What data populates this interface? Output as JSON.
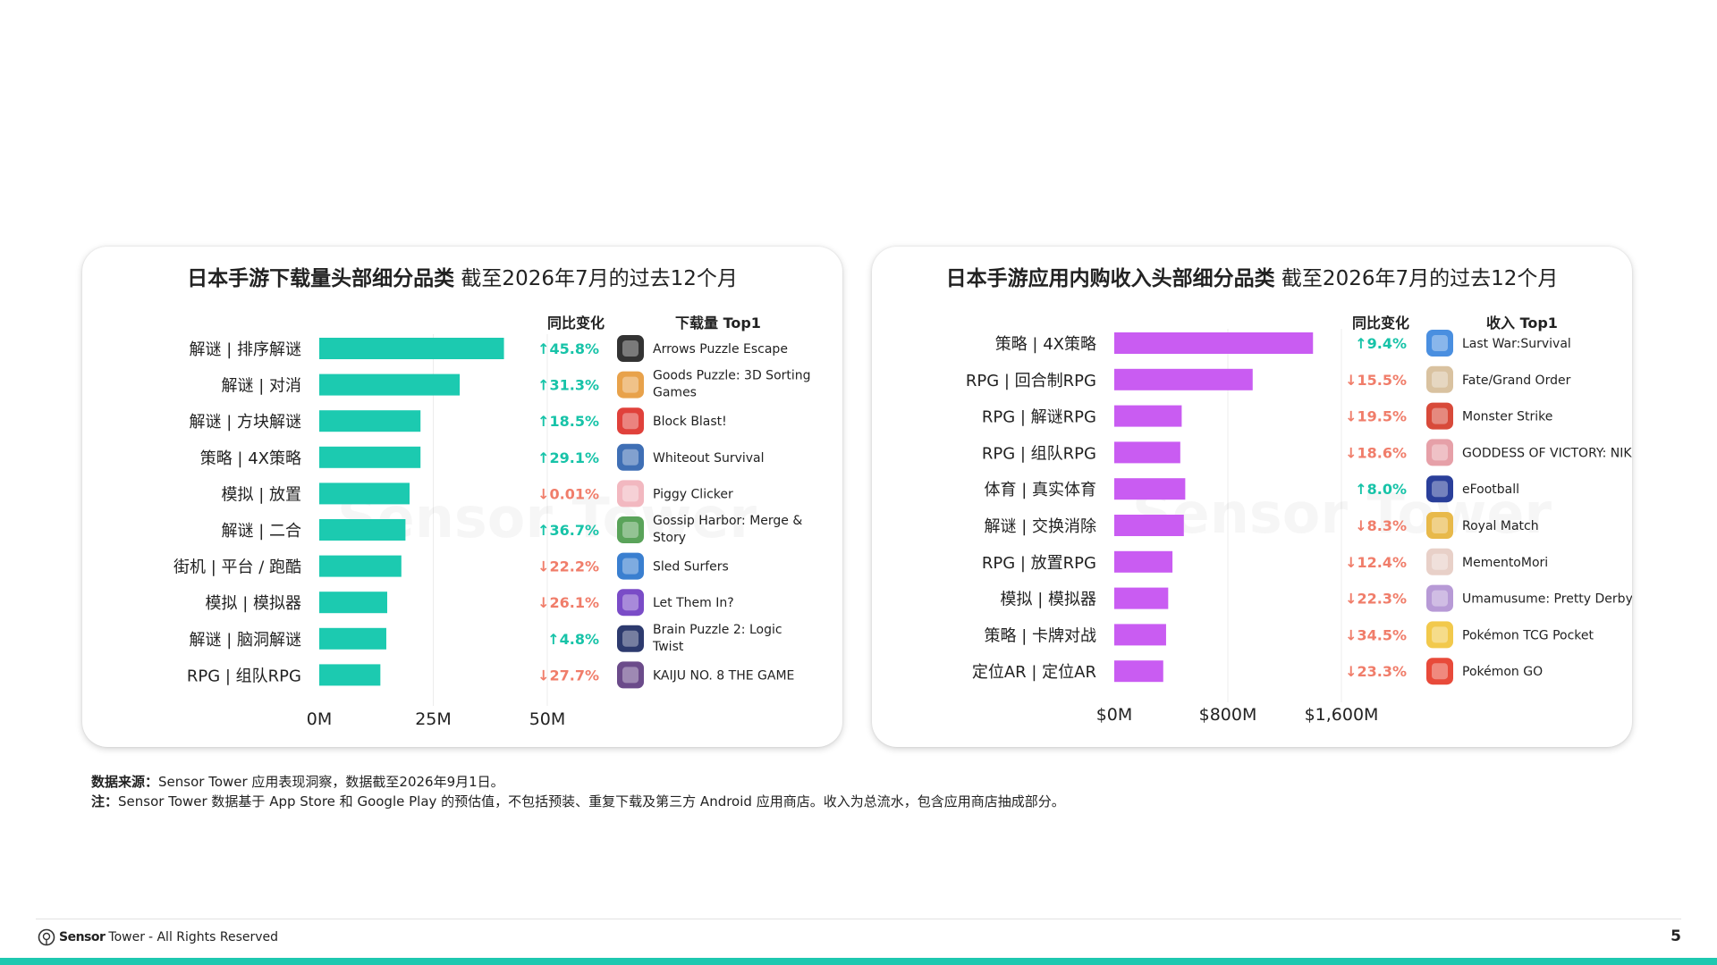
{
  "left": {
    "title_bold": "日本手游下载量头部细分品类",
    "title_rest": " 截至2026年7月的过去12个月",
    "col_change": "同比变化",
    "col_top": "下载量 Top1",
    "ticks": [
      "0M",
      "25M",
      "50M"
    ],
    "bar_color": "#1ccab0"
  },
  "right": {
    "title_bold": "日本手游应用内购收入头部细分品类",
    "title_rest": " 截至2026年7月的过去12个月",
    "col_change": "同比变化",
    "col_top": "收入 Top1",
    "ticks": [
      "$0M",
      "$800M",
      "$1,600M"
    ],
    "bar_color": "#c95cf2"
  },
  "chart_data": [
    {
      "type": "bar",
      "orientation": "horizontal",
      "title": "日本手游下载量头部细分品类 截至2026年7月的过去12个月",
      "xlim": [
        0,
        50
      ],
      "unit": "M",
      "categories": [
        "解谜 | 排序解谜",
        "解谜 | 对消",
        "解谜 | 方块解谜",
        "策略 | 4X策略",
        "模拟 | 放置",
        "解谜 | 二合",
        "街机 | 平台 / 跑酷",
        "模拟 | 模拟器",
        "解谜 | 脑洞解谜",
        "RPG | 组队RPG"
      ],
      "values": [
        40.5,
        30.8,
        22.2,
        22.2,
        19.8,
        18.9,
        18.0,
        14.9,
        14.7,
        13.4
      ],
      "yoy": [
        "↑45.8%",
        "↑31.3%",
        "↑18.5%",
        "↑29.1%",
        "↓0.01%",
        "↑36.7%",
        "↓22.2%",
        "↓26.1%",
        "↑4.8%",
        "↓27.7%"
      ],
      "yoy_direction": [
        "up",
        "up",
        "up",
        "up",
        "down",
        "up",
        "down",
        "down",
        "up",
        "down"
      ],
      "top1": [
        "Arrows  Puzzle Escape",
        "Goods Puzzle: 3D Sorting Games",
        "Block Blast!",
        "Whiteout Survival",
        "Piggy Clicker",
        "Gossip Harbor: Merge & Story",
        "Sled Surfers",
        "Let Them In?",
        "Brain Puzzle 2: Logic Twist",
        "KAIJU NO. 8 THE GAME"
      ],
      "top1_icons": [
        "arrows-icon",
        "goods-puzzle-icon",
        "block-blast-icon",
        "whiteout-icon",
        "piggy-icon",
        "gossip-harbor-icon",
        "sled-surfers-icon",
        "let-them-in-icon",
        "brain-puzzle-icon",
        "kaiju-icon"
      ],
      "top1_colors": [
        "#333333",
        "#e8a24b",
        "#e0413b",
        "#3f6fb5",
        "#f2b8c0",
        "#5aa35a",
        "#3a7fd0",
        "#7a4cc7",
        "#2d3a6e",
        "#6b4b8a"
      ]
    },
    {
      "type": "bar",
      "orientation": "horizontal",
      "title": "日本手游应用内购收入头部细分品类 截至2026年7月的过去12个月",
      "xlim": [
        0,
        1600
      ],
      "unit": "$M",
      "categories": [
        "策略 | 4X策略",
        "RPG | 回合制RPG",
        "RPG | 解谜RPG",
        "RPG | 组队RPG",
        "体育 | 真实体育",
        "解谜 | 交换消除",
        "RPG | 放置RPG",
        "模拟 | 模拟器",
        "策略 | 卡牌对战",
        "定位AR | 定位AR"
      ],
      "values": [
        1400,
        975,
        475,
        465,
        500,
        490,
        410,
        380,
        365,
        345
      ],
      "yoy": [
        "↑9.4%",
        "↓15.5%",
        "↓19.5%",
        "↓18.6%",
        "↑8.0%",
        "↓8.3%",
        "↓12.4%",
        "↓22.3%",
        "↓34.5%",
        "↓23.3%"
      ],
      "yoy_direction": [
        "up",
        "down",
        "down",
        "down",
        "up",
        "down",
        "down",
        "down",
        "down",
        "down"
      ],
      "top1": [
        "Last War:Survival",
        "Fate/Grand Order",
        "Monster Strike",
        "GODDESS OF VICTORY: NIKKE",
        "eFootball",
        "Royal Match",
        "MementoMori",
        "Umamusume: Pretty Derby",
        "Pokémon TCG Pocket",
        "Pokémon GO"
      ],
      "top1_icons": [
        "last-war-icon",
        "fate-grand-order-icon",
        "monster-strike-icon",
        "nikke-icon",
        "efootball-icon",
        "royal-match-icon",
        "mementomori-icon",
        "umamusume-icon",
        "pokemon-tcg-icon",
        "pokemon-go-icon"
      ],
      "top1_colors": [
        "#4a8fe0",
        "#d9c2a0",
        "#d84a3a",
        "#e6a0a8",
        "#2a3f9a",
        "#e8b94a",
        "#e8d0c8",
        "#b79ad6",
        "#f2c94c",
        "#e84a3a"
      ]
    }
  ],
  "notes": {
    "source_label": "数据来源：",
    "source_text": "Sensor Tower 应用表现洞察，数据截至2026年9月1日。",
    "note_label": "注：",
    "note_text": "Sensor Tower 数据基于 App Store 和 Google Play 的预估值，不包括预装、重复下载及第三方 Android 应用商店。收入为总流水，包含应用商店抽成部分。"
  },
  "footer": {
    "brand_bold": "Sensor",
    "brand_rest": "Tower",
    "rights": " - All Rights Reserved",
    "page": "5"
  },
  "watermark": "Sensor Tower"
}
